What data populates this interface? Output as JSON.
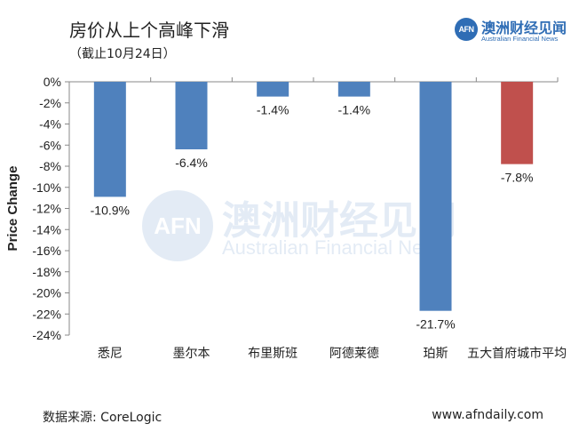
{
  "header": {
    "title": "房价从上个高峰下滑",
    "subtitle": "（截止10月24日）"
  },
  "logo": {
    "mark": "AFN",
    "name_cn": "澳洲财经见闻",
    "name_en": "Australian Financial News"
  },
  "watermark": {
    "mark": "AFN",
    "name_cn": "澳洲财经见闻",
    "name_en": "Australian Financial News"
  },
  "footer": {
    "source": "数据来源: CoreLogic",
    "website": "www.afndaily.com"
  },
  "colors": {
    "bar_default": "#4f81bd",
    "bar_highlight": "#c0504d",
    "axis": "#888888"
  },
  "chart_data": {
    "type": "bar",
    "title": "房价从上个高峰下滑",
    "subtitle": "（截止10月24日）",
    "xlabel": "",
    "ylabel": "Price Change",
    "ylim": [
      -24,
      0
    ],
    "yticks": [
      0,
      -2,
      -4,
      -6,
      -8,
      -10,
      -12,
      -14,
      -16,
      -18,
      -20,
      -22,
      -24
    ],
    "ytick_labels": [
      "0%",
      "-2%",
      "-4%",
      "-6%",
      "-8%",
      "-10%",
      "-12%",
      "-14%",
      "-16%",
      "-18%",
      "-20%",
      "-22%",
      "-24%"
    ],
    "categories": [
      "悉尼",
      "墨尔本",
      "布里斯班",
      "阿德莱德",
      "珀斯",
      "五大首府城市平均"
    ],
    "values": [
      -10.9,
      -6.4,
      -1.4,
      -1.4,
      -21.7,
      -7.8
    ],
    "data_labels": [
      "-10.9%",
      "-6.4%",
      "-1.4%",
      "-1.4%",
      "-21.7%",
      "-7.8%"
    ],
    "highlight_index": 5,
    "grid": false,
    "legend": "none"
  }
}
